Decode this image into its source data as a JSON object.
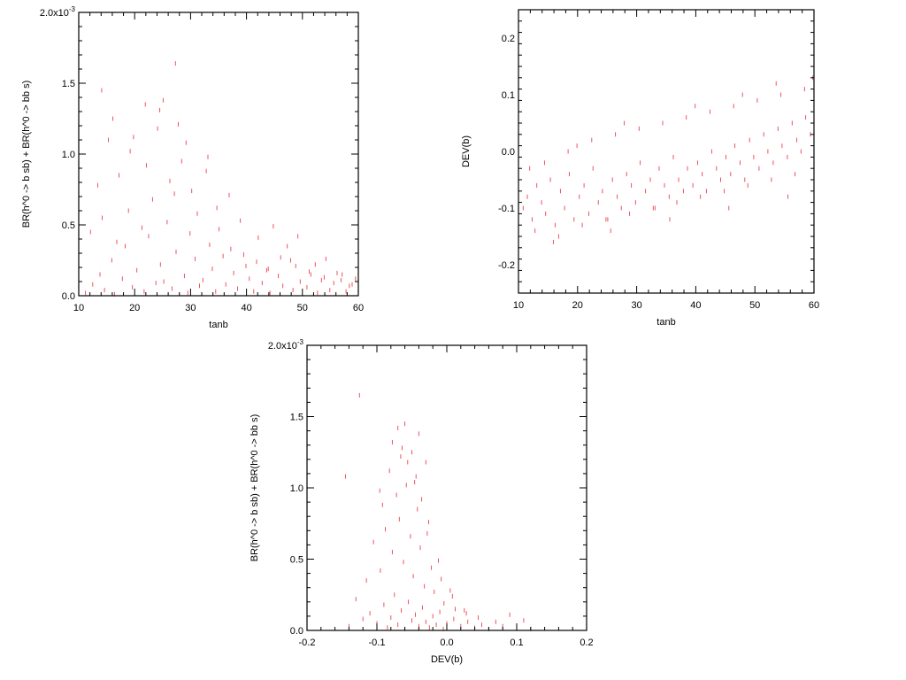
{
  "chart_data": [
    {
      "type": "scatter",
      "panel": "top-left",
      "xlabel": "tanb",
      "ylabel": "BR(h^0 -> b sb) + BR(h^0 -> bb s)",
      "xlim": [
        10,
        60
      ],
      "ylim": [
        0,
        0.002
      ],
      "x_ticks": [
        10,
        20,
        30,
        40,
        50,
        60
      ],
      "x_tick_labels": [
        "10",
        "20",
        "30",
        "40",
        "50",
        "60"
      ],
      "y_ticks": [
        0,
        0.0005,
        0.001,
        0.0015,
        0.002
      ],
      "y_tick_labels": [
        "0.0",
        "0.5",
        "1.0",
        "1.5",
        "2.0x10"
      ],
      "y_exponent": "-3",
      "grid": false,
      "marker": "short vertical red dash",
      "color": "#e8202a",
      "series": [
        {
          "x": [
            11.2,
            12.5,
            13.8,
            14.6,
            15.9,
            16.4,
            17.8,
            18.3,
            19.6,
            20.4,
            21.7,
            22.5,
            23.8,
            24.6,
            25.2,
            26.7,
            27.4,
            28.9,
            29.5,
            30.8,
            31.6,
            32.2,
            33.9,
            34.5,
            35.8,
            36.3,
            37.7,
            38.4,
            39.9,
            40.5,
            41.3,
            42.8,
            43.6,
            44.2,
            45.7,
            46.5,
            47.9,
            48.3,
            49.6,
            50.8,
            51.5,
            52.7,
            53.4,
            54.9,
            55.6,
            56.2,
            57.8,
            58.4,
            59.5,
            12.1,
            14.2,
            16.8,
            18.9,
            21.3,
            23.2,
            25.8,
            27.1,
            29.9,
            31.2,
            33.4,
            35.1,
            37.2,
            39.5,
            41.8,
            43.9,
            46.1,
            48.8,
            51.2,
            53.9,
            56.9,
            58.9,
            13.4,
            17.2,
            22.1,
            26.3,
            30.2,
            34.7,
            38.9,
            42.1,
            47.3,
            52.3,
            57.1,
            15.3,
            19.2,
            24.1,
            28.4,
            32.8,
            36.9,
            44.8,
            49.2,
            54.2,
            16.1,
            21.9,
            27.8,
            33.1,
            25.1,
            29.2,
            14.1,
            24.5,
            19.8,
            27.3
          ],
          "y": [
            2e-05,
            8e-05,
            0.00015,
            4e-05,
            0.00025,
            1e-05,
            0.00012,
            0.00035,
            6e-05,
            0.00018,
            3e-05,
            0.00042,
            9e-05,
            0.00022,
            0.0001,
            5e-05,
            0.00031,
            0.00014,
            2e-05,
            0.00026,
            7e-05,
            0.00011,
            0.00019,
            3e-05,
            0.00028,
            8e-05,
            0.00016,
            5e-05,
            0.00021,
            0.00012,
            3e-05,
            9e-05,
            0.00018,
            2e-05,
            0.00014,
            7e-05,
            0.00025,
            4e-05,
            0.0001,
            6e-05,
            0.00015,
            2e-05,
            0.00011,
            4e-05,
            9e-05,
            0.00016,
            3e-05,
            7e-05,
            0.00012,
            0.00045,
            0.00055,
            0.00038,
            0.0006,
            0.00048,
            0.00068,
            0.00052,
            0.00072,
            0.00044,
            0.00058,
            0.00036,
            0.00047,
            0.00033,
            0.00029,
            0.00024,
            0.00019,
            0.00027,
            0.00021,
            0.00017,
            0.00013,
            0.00011,
            8e-05,
            0.00078,
            0.00085,
            0.00092,
            0.00081,
            0.00074,
            0.00062,
            0.00053,
            0.00041,
            0.00035,
            0.00022,
            0.00015,
            0.0011,
            0.00102,
            0.00118,
            0.00095,
            0.00088,
            0.00071,
            0.00049,
            0.00042,
            0.00026,
            0.00125,
            0.00135,
            0.00121,
            0.00098,
            0.00138,
            0.00108,
            0.00145,
            0.00131,
            0.00112,
            0.00164
          ]
        }
      ]
    },
    {
      "type": "scatter",
      "panel": "top-right",
      "xlabel": "tanb",
      "ylabel": "DEV(b)",
      "xlim": [
        10,
        60
      ],
      "ylim": [
        -0.25,
        0.25
      ],
      "x_ticks": [
        10,
        20,
        30,
        40,
        50,
        60
      ],
      "x_tick_labels": [
        "10",
        "20",
        "30",
        "40",
        "50",
        "60"
      ],
      "y_ticks": [
        -0.2,
        -0.1,
        0.0,
        0.1,
        0.2
      ],
      "y_tick_labels": [
        "-0.2",
        "-0.1",
        "0.0",
        "0.1",
        "0.2"
      ],
      "grid": false,
      "marker": "short vertical red dash",
      "color": "#e8202a",
      "series": [
        {
          "x": [
            10.8,
            11.5,
            12.3,
            13.1,
            13.9,
            14.6,
            15.4,
            16.2,
            17.1,
            17.8,
            18.6,
            19.4,
            20.3,
            21.1,
            21.9,
            22.6,
            23.5,
            24.2,
            25.1,
            25.9,
            26.7,
            27.4,
            28.3,
            29.1,
            29.8,
            30.6,
            31.5,
            32.3,
            33.1,
            33.8,
            34.7,
            35.5,
            36.2,
            37.1,
            37.9,
            38.6,
            39.5,
            40.3,
            41.1,
            41.8,
            42.7,
            43.5,
            44.2,
            45.1,
            45.9,
            46.6,
            47.5,
            48.3,
            49.1,
            49.8,
            50.7,
            51.5,
            52.2,
            53.1,
            53.9,
            54.6,
            55.5,
            56.3,
            57.1,
            57.8,
            58.6,
            59.4,
            12.8,
            16.8,
            20.8,
            24.8,
            28.8,
            32.8,
            36.8,
            40.8,
            44.8,
            48.8,
            52.8,
            56.8,
            14.4,
            18.4,
            22.4,
            26.4,
            30.4,
            34.4,
            38.4,
            42.4,
            46.4,
            50.4,
            54.4,
            58.4,
            15.9,
            25.6,
            35.6,
            45.6,
            55.6,
            11.9,
            19.9,
            27.9,
            39.9,
            47.9,
            53.6,
            59.8
          ],
          "y": [
            -0.1,
            -0.08,
            -0.12,
            -0.06,
            -0.09,
            -0.11,
            -0.05,
            -0.13,
            -0.07,
            -0.1,
            -0.04,
            -0.12,
            -0.08,
            -0.06,
            -0.11,
            -0.03,
            -0.09,
            -0.07,
            -0.12,
            -0.05,
            -0.08,
            -0.1,
            -0.04,
            -0.06,
            -0.09,
            -0.02,
            -0.07,
            -0.05,
            -0.1,
            -0.03,
            -0.06,
            -0.08,
            -0.01,
            -0.05,
            -0.07,
            -0.03,
            -0.06,
            -0.02,
            -0.04,
            -0.07,
            0.0,
            -0.03,
            -0.05,
            -0.01,
            -0.04,
            0.01,
            -0.02,
            -0.05,
            0.02,
            -0.01,
            -0.03,
            0.03,
            0.0,
            -0.02,
            0.04,
            0.01,
            -0.01,
            0.05,
            0.02,
            0.0,
            0.06,
            0.03,
            -0.14,
            -0.15,
            -0.13,
            -0.12,
            -0.11,
            -0.1,
            -0.09,
            -0.08,
            -0.07,
            -0.06,
            -0.05,
            -0.04,
            -0.02,
            0.0,
            0.02,
            0.03,
            0.04,
            0.05,
            0.06,
            0.07,
            0.08,
            0.09,
            0.1,
            0.11,
            -0.16,
            -0.14,
            -0.12,
            -0.1,
            -0.08,
            -0.03,
            0.01,
            0.05,
            0.08,
            0.1,
            0.12,
            0.13
          ]
        }
      ]
    },
    {
      "type": "scatter",
      "panel": "bottom",
      "xlabel": "DEV(b)",
      "ylabel": "BR(h^0 -> b sb) + BR(h^0 -> bb s)",
      "xlim": [
        -0.2,
        0.2
      ],
      "ylim": [
        0,
        0.002
      ],
      "x_ticks": [
        -0.2,
        -0.1,
        0.0,
        0.1,
        0.2
      ],
      "x_tick_labels": [
        "-0.2",
        "-0.1",
        "0.0",
        "0.1",
        "0.2"
      ],
      "y_ticks": [
        0,
        0.0005,
        0.001,
        0.0015,
        0.002
      ],
      "y_tick_labels": [
        "0.0",
        "0.5",
        "1.0",
        "1.5",
        "2.0x10"
      ],
      "y_exponent": "-3",
      "grid": false,
      "marker": "short vertical red dash",
      "color": "#e8202a",
      "series": [
        {
          "x": [
            -0.14,
            -0.12,
            -0.11,
            -0.1,
            -0.09,
            -0.085,
            -0.08,
            -0.075,
            -0.07,
            -0.065,
            -0.06,
            -0.055,
            -0.05,
            -0.045,
            -0.04,
            -0.035,
            -0.03,
            -0.025,
            -0.02,
            -0.015,
            -0.01,
            -0.005,
            0.0,
            0.01,
            0.02,
            0.03,
            0.04,
            0.05,
            0.06,
            0.08,
            0.1,
            0.12,
            -0.13,
            -0.115,
            -0.095,
            -0.078,
            -0.062,
            -0.048,
            -0.032,
            -0.018,
            -0.004,
            0.012,
            0.028,
            0.045,
            0.07,
            -0.105,
            -0.088,
            -0.068,
            -0.052,
            -0.038,
            -0.022,
            -0.008,
            0.008,
            0.025,
            -0.092,
            -0.072,
            -0.058,
            -0.042,
            -0.028,
            -0.012,
            0.005,
            -0.082,
            -0.066,
            -0.046,
            -0.026,
            -0.078,
            -0.056,
            -0.036,
            -0.064,
            -0.044,
            -0.07,
            -0.05,
            -0.096,
            -0.03,
            -0.06,
            -0.04,
            -0.125,
            -0.145,
            0.09,
            0.11
          ],
          "y": [
            3e-05,
            8e-05,
            0.00012,
            5e-05,
            0.00018,
            2e-05,
            9e-05,
            0.00025,
            4e-05,
            0.00014,
            1e-05,
            0.0002,
            7e-05,
            0.00011,
            3e-05,
            0.00016,
            6e-05,
            2e-05,
            0.0001,
            4e-05,
            0.00013,
            1e-05,
            5e-05,
            8e-05,
            3e-05,
            6e-05,
            2e-05,
            4e-05,
            1e-05,
            3e-05,
            2e-05,
            1e-05,
            0.00022,
            0.00035,
            0.00042,
            0.00055,
            0.00048,
            0.00038,
            0.00031,
            0.00027,
            0.00019,
            0.00015,
            0.00012,
            9e-05,
            6e-05,
            0.00062,
            0.00071,
            0.00078,
            0.00066,
            0.00058,
            0.00044,
            0.00036,
            0.00024,
            0.00014,
            0.00088,
            0.00095,
            0.00102,
            0.00085,
            0.00068,
            0.00049,
            0.00028,
            0.00112,
            0.00122,
            0.00104,
            0.00076,
            0.00132,
            0.00118,
            0.00092,
            0.00128,
            0.00108,
            0.00142,
            0.00125,
            0.00098,
            0.00118,
            0.00145,
            0.00138,
            0.00165,
            0.00108,
            0.00011,
            7e-05
          ]
        }
      ]
    }
  ]
}
